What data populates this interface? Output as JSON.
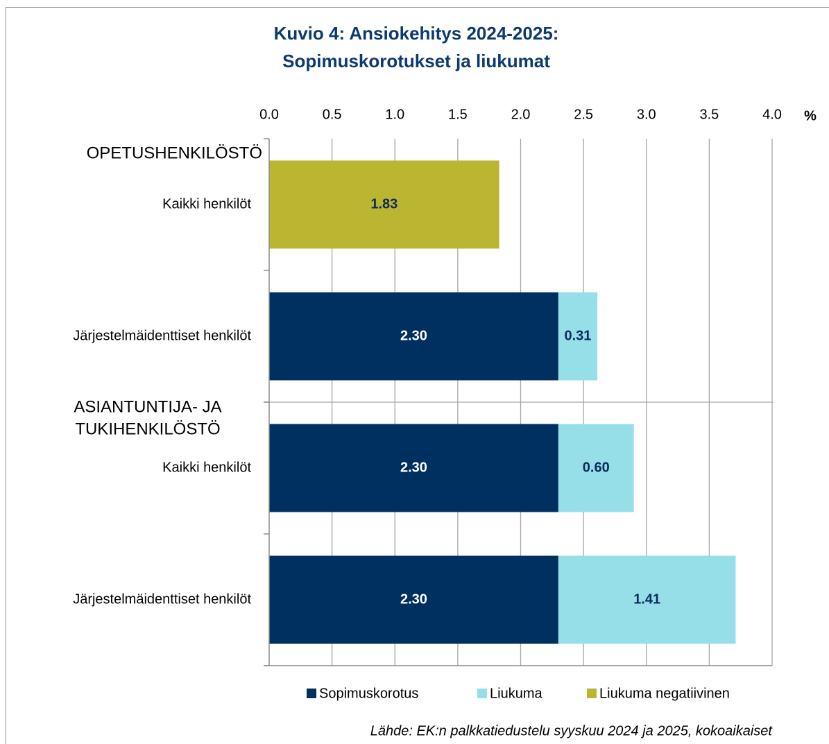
{
  "chart_data": {
    "type": "stacked_barh",
    "title": [
      "Kuvio 4: Ansiokehitys 2024-2025:",
      "Sopimuskorotukset ja liukumat"
    ],
    "x_unit": "%",
    "group_labels": [
      [
        "OPETUSHENKILÖSTÖ"
      ],
      [
        "ASIANTUNTIJA- JA",
        "TUKIHENKILÖSTÖ"
      ]
    ],
    "categories": [
      "Kaikki henkilöt",
      "Järjestelmäidenttiset henkilöt",
      "Kaikki henkilöt",
      "Järjestelmäidenttiset henkilöt"
    ],
    "series": [
      {
        "name": "Sopimuskorotus",
        "color": "#00305f",
        "label_color": "#ffffff",
        "values": [
          null,
          2.3,
          2.3,
          2.3
        ],
        "value_labels": [
          null,
          "2.30",
          "2.30",
          "2.30"
        ]
      },
      {
        "name": "Liukuma",
        "color": "#96dfe8",
        "label_color": "#0d2a5c",
        "values": [
          null,
          0.31,
          0.6,
          1.41
        ],
        "value_labels": [
          null,
          "0.31",
          "0.60",
          "1.41"
        ]
      },
      {
        "name": "Liukuma negatiivinen",
        "color": "#bab632",
        "label_color": "#0d2a5c",
        "values": [
          1.83,
          null,
          null,
          null
        ],
        "value_labels": [
          "1.83",
          null,
          null,
          null
        ]
      }
    ],
    "xlim": [
      0,
      4
    ],
    "xticks": [
      {
        "value": 0,
        "label": "0.0"
      },
      0.5,
      {
        "value": 1,
        "label": "1.0"
      },
      1.5,
      {
        "value": 2,
        "label": "2.0"
      },
      2.5,
      {
        "value": 3,
        "label": "3.0"
      },
      3.5,
      {
        "value": 4,
        "label": "4.0"
      }
    ],
    "grid": true,
    "legend": "bottom",
    "source": "Lähde: EK:n palkkatiedustelu syyskuu 2024 ja 2025, kokoaikaiset"
  }
}
